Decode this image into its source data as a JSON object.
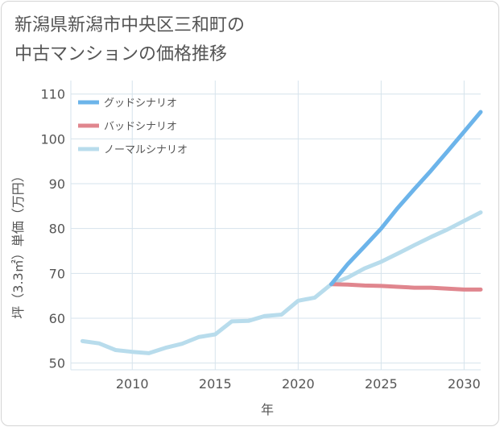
{
  "title": {
    "line1": "新潟県新潟市中央区三和町の",
    "line2": "中古マンションの価格推移"
  },
  "chart_data": {
    "type": "line",
    "xlabel": "年",
    "ylabel": "坪（3.3㎡）単価（万円）",
    "xlim": [
      2006.3,
      2031
    ],
    "ylim": [
      48.5,
      113
    ],
    "x_ticks": [
      2010,
      2015,
      2020,
      2025,
      2030
    ],
    "y_ticks": [
      50,
      60,
      70,
      80,
      90,
      100,
      110
    ],
    "grid": true,
    "legend_position": "top-left",
    "series": [
      {
        "name": "グッドシナリオ",
        "color": "#6cb4ea",
        "x": [
          2022,
          2023,
          2024,
          2025,
          2026,
          2027,
          2028,
          2029,
          2030,
          2031
        ],
        "y": [
          67.6,
          72.1,
          76.0,
          80.0,
          84.6,
          88.8,
          92.9,
          97.2,
          101.6,
          106.0
        ]
      },
      {
        "name": "バッドシナリオ",
        "color": "#e0868e",
        "x": [
          2022,
          2023,
          2024,
          2025,
          2026,
          2027,
          2028,
          2029,
          2030,
          2031
        ],
        "y": [
          67.6,
          67.5,
          67.3,
          67.2,
          67.0,
          66.8,
          66.8,
          66.6,
          66.4,
          66.4
        ]
      },
      {
        "name": "ノーマルシナリオ",
        "color": "#b8dcec",
        "x": [
          2007,
          2008,
          2009,
          2010,
          2011,
          2012,
          2013,
          2014,
          2015,
          2016,
          2017,
          2018,
          2019,
          2020,
          2021,
          2022,
          2023,
          2024,
          2025,
          2026,
          2027,
          2028,
          2029,
          2030,
          2031
        ],
        "y": [
          54.9,
          54.4,
          52.9,
          52.5,
          52.2,
          53.4,
          54.3,
          55.8,
          56.4,
          59.3,
          59.4,
          60.5,
          60.8,
          63.9,
          64.6,
          67.6,
          69.1,
          71.1,
          72.6,
          74.4,
          76.3,
          78.1,
          79.8,
          81.7,
          83.6
        ]
      }
    ]
  }
}
